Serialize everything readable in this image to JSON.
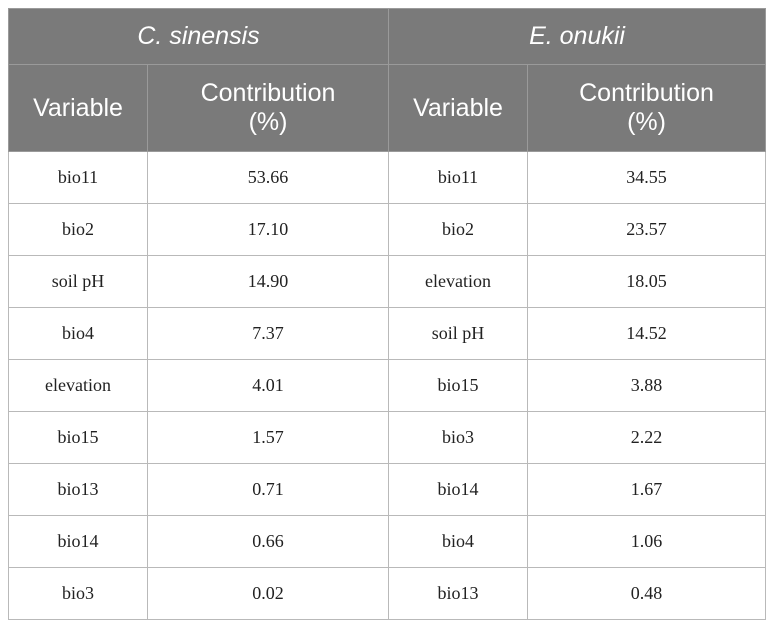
{
  "table": {
    "species": [
      "C. sinensis",
      "E. onukii"
    ],
    "column_headers": {
      "variable": "Variable",
      "contribution_line1": "Contribution",
      "contribution_line2": "(%)"
    },
    "c_sinensis_rows": [
      {
        "variable": "bio11",
        "contribution": "53.66"
      },
      {
        "variable": "bio2",
        "contribution": "17.10"
      },
      {
        "variable": "soil pH",
        "contribution": "14.90"
      },
      {
        "variable": "bio4",
        "contribution": "7.37"
      },
      {
        "variable": "elevation",
        "contribution": "4.01"
      },
      {
        "variable": "bio15",
        "contribution": "1.57"
      },
      {
        "variable": "bio13",
        "contribution": "0.71"
      },
      {
        "variable": "bio14",
        "contribution": "0.66"
      },
      {
        "variable": "bio3",
        "contribution": "0.02"
      }
    ],
    "e_onukii_rows": [
      {
        "variable": "bio11",
        "contribution": "34.55"
      },
      {
        "variable": "bio2",
        "contribution": "23.57"
      },
      {
        "variable": "elevation",
        "contribution": "18.05"
      },
      {
        "variable": "soil pH",
        "contribution": "14.52"
      },
      {
        "variable": "bio15",
        "contribution": "3.88"
      },
      {
        "variable": "bio3",
        "contribution": "2.22"
      },
      {
        "variable": "bio14",
        "contribution": "1.67"
      },
      {
        "variable": "bio4",
        "contribution": "1.06"
      },
      {
        "variable": "bio13",
        "contribution": "0.48"
      }
    ]
  }
}
